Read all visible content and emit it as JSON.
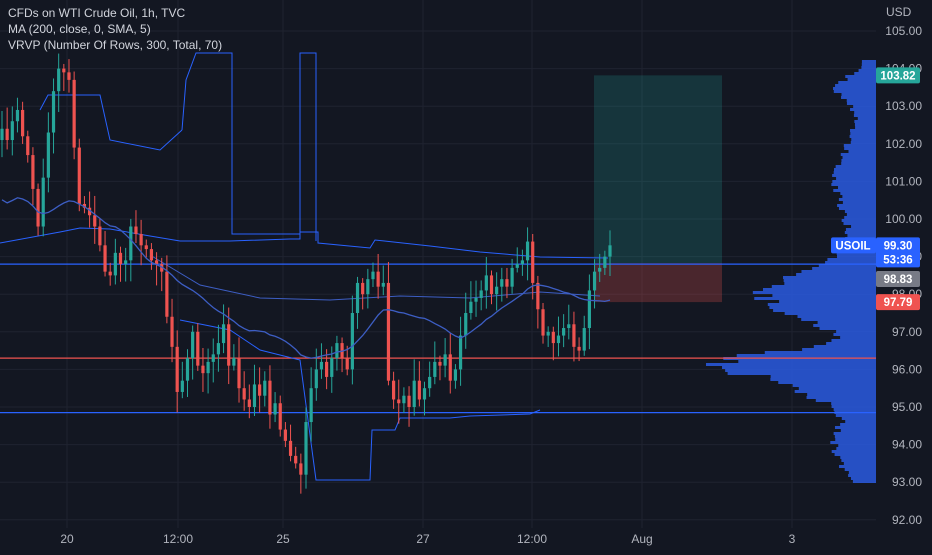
{
  "legend": {
    "title": "CFDs on WTI Crude Oil, 1h, TVC",
    "ma": "MA (200, close, 0, SMA, 5)",
    "vrvp": "VRVP (Number Of Rows, 300, Total, 70)"
  },
  "currency": "USD",
  "colors": {
    "background": "#131722",
    "grid": "#1f2330",
    "up": "#26a69a",
    "down": "#ef5350",
    "ma_line": "#3d5ec4",
    "profile": "#2a5be0",
    "level_blue": "#2962ff",
    "level_red": "#ef5350",
    "target_zone": "rgba(38,166,154,0.22)",
    "stop_zone": "rgba(239,83,80,0.25)"
  },
  "badges": {
    "high": "103.82",
    "symbol": "USOIL",
    "last": "99.30",
    "countdown": "53:36",
    "entry": "98.83",
    "stop": "97.79"
  },
  "chart_data": {
    "type": "candlestick",
    "symbol": "USOIL",
    "interval": "1h",
    "ylim": [
      91.8,
      105.4
    ],
    "y_ticks": [
      "105.00",
      "104.00",
      "103.00",
      "102.00",
      "101.00",
      "100.00",
      "99.00",
      "98.00",
      "97.00",
      "96.00",
      "95.00",
      "94.00",
      "93.00",
      "92.00"
    ],
    "x_ticks": [
      "20",
      "12:00",
      "25",
      "27",
      "12:00",
      "Aug",
      "3"
    ],
    "horizontal_levels": [
      {
        "price": 98.8,
        "color": "blue"
      },
      {
        "price": 96.3,
        "color": "red"
      },
      {
        "price": 94.85,
        "color": "blue"
      }
    ],
    "position": {
      "entry": 98.83,
      "target": 103.82,
      "stop": 97.79
    },
    "last_price": 99.3,
    "closes": [
      102.4,
      102.1,
      102.6,
      102.9,
      102.2,
      101.7,
      100.8,
      99.8,
      101.1,
      102.3,
      103.4,
      104.0,
      103.9,
      103.7,
      101.9,
      100.4,
      100.3,
      100.1,
      99.8,
      99.3,
      98.6,
      98.5,
      99.1,
      98.8,
      98.9,
      99.8,
      99.6,
      99.3,
      99.2,
      98.9,
      98.8,
      98.6,
      97.4,
      96.6,
      95.4,
      95.7,
      96.3,
      97.0,
      96.1,
      95.9,
      96.2,
      96.4,
      96.7,
      97.2,
      96.1,
      96.3,
      95.5,
      95.2,
      95.0,
      95.6,
      95.3,
      95.7,
      94.8,
      95.1,
      94.4,
      94.1,
      93.7,
      93.5,
      93.2,
      94.6,
      95.5,
      96.0,
      96.2,
      95.8,
      96.3,
      96.7,
      96.3,
      96.0,
      97.5,
      98.3,
      98.0,
      98.4,
      98.6,
      98.2,
      98.3,
      95.7,
      95.2,
      95.1,
      95.3,
      95.0,
      95.7,
      95.2,
      95.5,
      95.8,
      96.2,
      96.1,
      96.4,
      95.7,
      96.0,
      96.9,
      97.5,
      97.8,
      97.9,
      98.1,
      98.5,
      98.0,
      98.2,
      98.4,
      98.2,
      98.7,
      98.8,
      98.9,
      99.4,
      98.3,
      97.6,
      96.9,
      97.0,
      96.7,
      96.9,
      97.1,
      97.2,
      96.6,
      96.5,
      97.1,
      98.1,
      98.6,
      98.7,
      99.0,
      99.3
    ]
  }
}
